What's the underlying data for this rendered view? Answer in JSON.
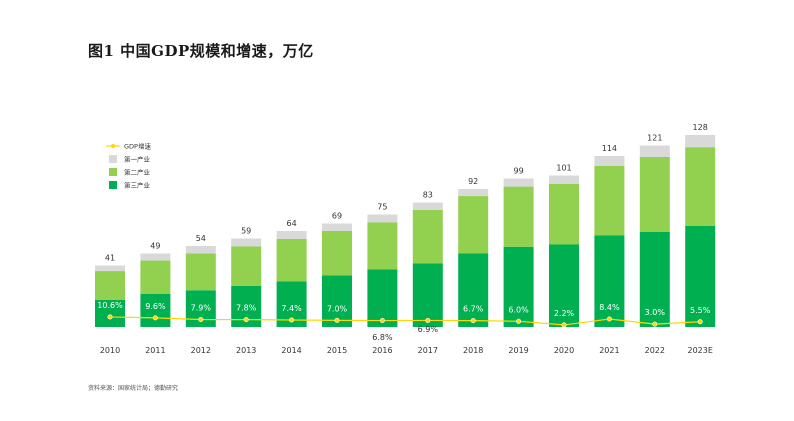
{
  "title": "图1 中国GDP规模和增速，万亿",
  "source": "资料来源：国家统计局；德勤研究",
  "colors": {
    "primary": "#d9d9d9",
    "secondary": "#92d050",
    "tertiary": "#00b050",
    "growth": "#ffd700"
  },
  "chart_data": {
    "type": "bar",
    "stacked": true,
    "categories": [
      "2010",
      "2011",
      "2012",
      "2013",
      "2014",
      "2015",
      "2016",
      "2017",
      "2018",
      "2019",
      "2020",
      "2021",
      "2022",
      "2023E"
    ],
    "totals": [
      41,
      49,
      54,
      59,
      64,
      69,
      75,
      83,
      92,
      99,
      101,
      114,
      121,
      128
    ],
    "series": [
      {
        "name": "第三产业",
        "values": [
          18,
          22,
          24.5,
          27.5,
          30.5,
          34.5,
          38.5,
          42.5,
          49,
          53.5,
          55,
          61,
          63.5,
          67.5
        ]
      },
      {
        "name": "第二产业",
        "values": [
          19.3,
          22.3,
          24.6,
          26.3,
          28.2,
          29.5,
          31.3,
          35.5,
          38.3,
          40.1,
          40.4,
          46.5,
          49.9,
          52.4
        ]
      },
      {
        "name": "第一产业",
        "values": [
          3.7,
          4.7,
          4.9,
          5.2,
          5.3,
          5.0,
          5.2,
          5.0,
          4.7,
          5.4,
          5.6,
          6.5,
          7.6,
          8.1
        ]
      }
    ],
    "growth": {
      "name": "GDP增速",
      "values": [
        10.6,
        9.6,
        7.9,
        7.8,
        7.4,
        7.0,
        6.8,
        6.9,
        6.7,
        6.0,
        2.2,
        8.4,
        3.0,
        5.5
      ],
      "labels": [
        "10.6%",
        "9.6%",
        "7.9%",
        "7.8%",
        "7.4%",
        "7.0%",
        "6.8%",
        "6.9%",
        "6.7%",
        "6.0%",
        "2.2%",
        "8.4%",
        "3.0%",
        "5.5%"
      ]
    },
    "legend": [
      "GDP增速",
      "第一产业",
      "第二产业",
      "第三产业"
    ],
    "legend_position": "top-left",
    "grid": false
  }
}
